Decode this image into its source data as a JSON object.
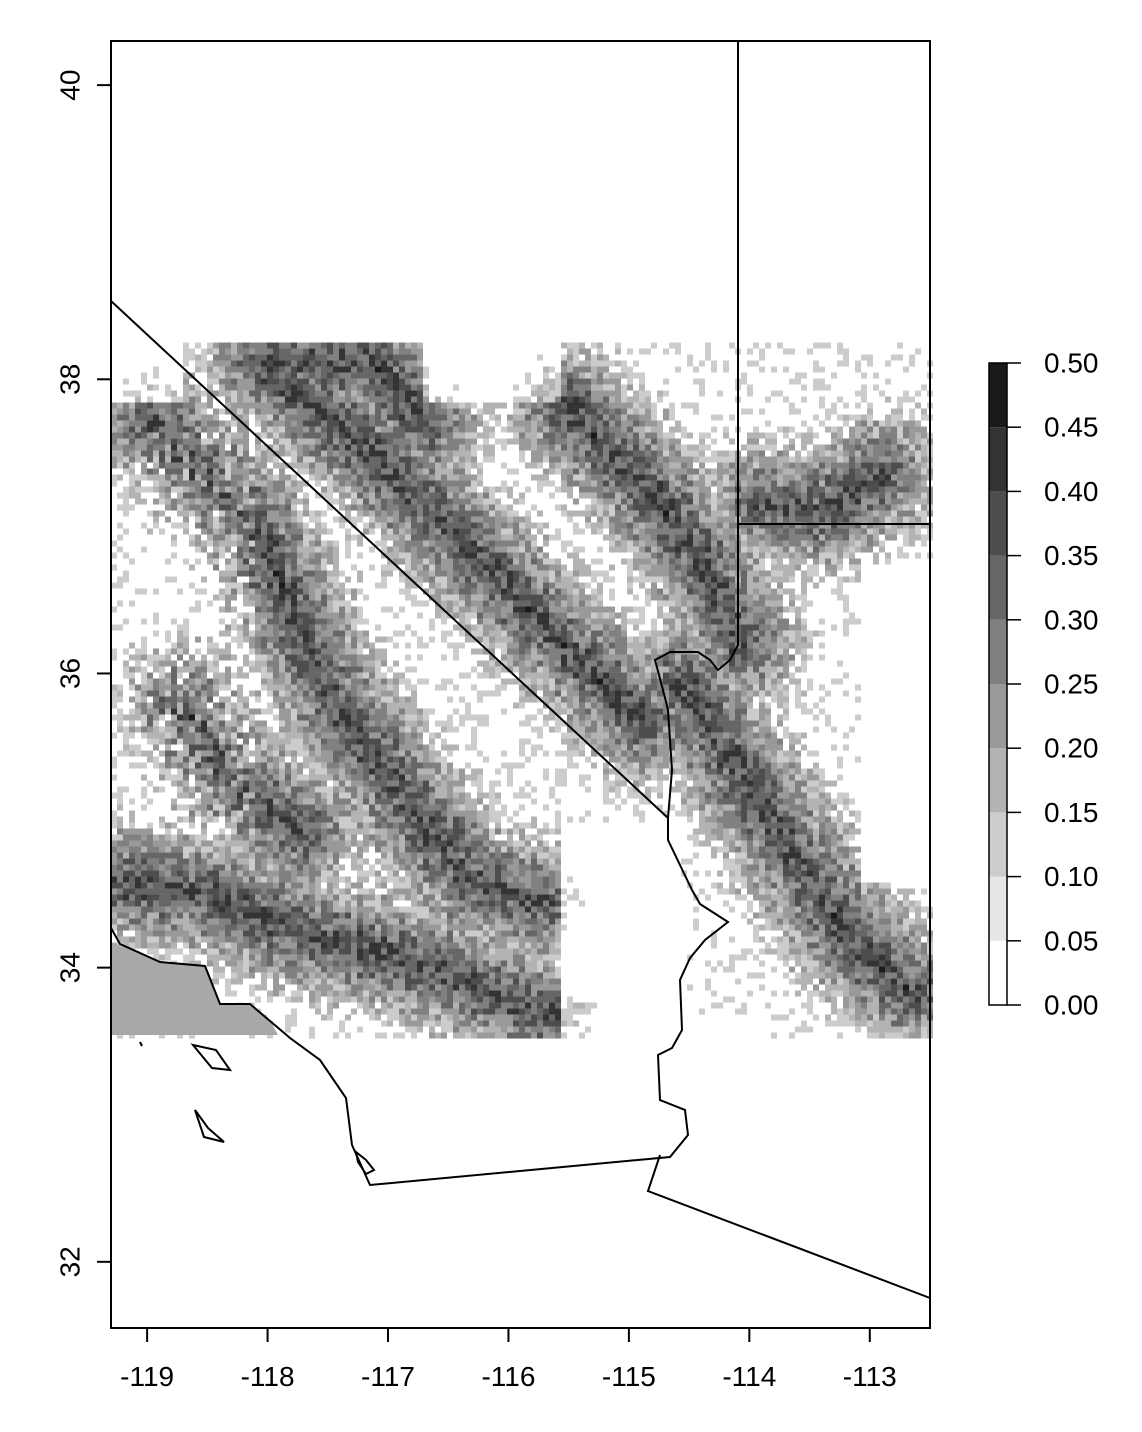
{
  "map": {
    "x_ticks": [
      "-119",
      "-118",
      "-117",
      "-116",
      "-115",
      "-114",
      "-113"
    ],
    "y_ticks": [
      "32",
      "34",
      "36",
      "38",
      "40"
    ],
    "x_range": [
      -119.3,
      -112.5
    ],
    "y_range": [
      31.55,
      40.3
    ],
    "raster_extent": {
      "lon": [
        -119.3,
        -112.5
      ],
      "lat": [
        33.55,
        38.25
      ]
    },
    "ocean_patch_level": 0.2,
    "boundary_color": "#000000"
  },
  "legend": {
    "labels": [
      "0.00",
      "0.05",
      "0.10",
      "0.15",
      "0.20",
      "0.25",
      "0.30",
      "0.35",
      "0.40",
      "0.45",
      "0.50"
    ],
    "colors": [
      "#ffffff",
      "#e6e6e6",
      "#cccccc",
      "#b3b3b3",
      "#999999",
      "#808080",
      "#666666",
      "#4d4d4d",
      "#333333",
      "#1a1a1a",
      "#000000"
    ]
  }
}
